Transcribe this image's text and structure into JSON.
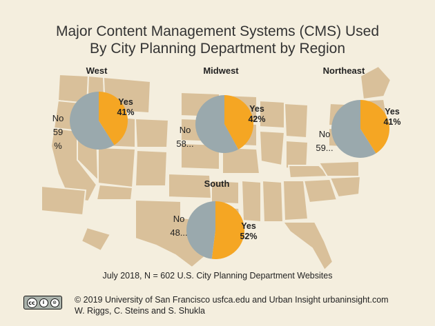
{
  "title_line1": "Major Content Management Systems (CMS) Used",
  "title_line2": "By City Planning Department by Region",
  "footer_note": "July 2018, N = 602 U.S. City Planning Department Websites",
  "credit_line1": "© 2019 University of San Francisco usfca.edu and Urban Insight urbaninsight.com",
  "credit_line2": "W. Riggs, C. Steins and S. Shukla",
  "license_badge": {
    "icons": [
      "cc",
      "by",
      "sa"
    ],
    "labels": [
      "cc",
      "i",
      "⊙"
    ]
  },
  "colors": {
    "yes": "#f5a623",
    "no": "#9aa9ad",
    "background": "#f4eede",
    "map_states": "#d9c09a"
  },
  "chart_data": [
    {
      "type": "pie",
      "title": "West",
      "categories": [
        "Yes",
        "No"
      ],
      "values": [
        41,
        59
      ],
      "labels": {
        "yes": [
          "Yes",
          "41%"
        ],
        "no": [
          "No",
          "59",
          "%"
        ]
      }
    },
    {
      "type": "pie",
      "title": "Midwest",
      "categories": [
        "Yes",
        "No"
      ],
      "values": [
        42,
        58
      ],
      "labels": {
        "yes": [
          "Yes",
          "42%"
        ],
        "no": [
          "No",
          "58..."
        ]
      }
    },
    {
      "type": "pie",
      "title": "Northeast",
      "categories": [
        "Yes",
        "No"
      ],
      "values": [
        41,
        59
      ],
      "labels": {
        "yes": [
          "Yes",
          "41%"
        ],
        "no": [
          "No",
          "59..."
        ]
      }
    },
    {
      "type": "pie",
      "title": "South",
      "categories": [
        "Yes",
        "No"
      ],
      "values": [
        52,
        48
      ],
      "labels": {
        "yes": [
          "Yes",
          "52%"
        ],
        "no": [
          "No",
          "48..."
        ]
      }
    }
  ]
}
